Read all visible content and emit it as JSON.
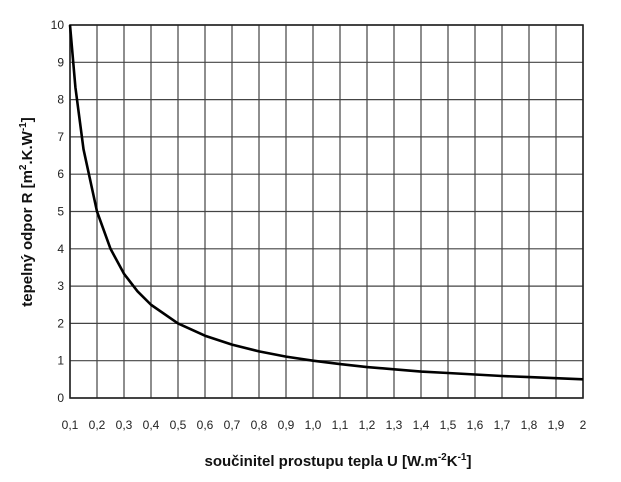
{
  "chart_data": {
    "type": "line",
    "title": "",
    "xlabel": {
      "prefix": "součinitel prostupu tepla U [W.m",
      "sup1": "-2",
      "mid": "K",
      "sup2": "-1",
      "suffix": "]"
    },
    "ylabel": {
      "prefix": "tepelný odpor R [m",
      "sup1": "2",
      "mid": ".K.W",
      "sup2": "-1",
      "suffix": "]"
    },
    "xlim": [
      0.1,
      2.0
    ],
    "ylim": [
      0,
      10
    ],
    "grid": true,
    "x_tick_labels": [
      "0,1",
      "0,2",
      "0,3",
      "0,4",
      "0,5",
      "0,6",
      "0,7",
      "0,8",
      "0,9",
      "1,0",
      "1,1",
      "1,2",
      "1,3",
      "1,4",
      "1,5",
      "1,6",
      "1,7",
      "1,8",
      "1,9",
      "2"
    ],
    "y_tick_labels": [
      "0",
      "1",
      "2",
      "3",
      "4",
      "5",
      "6",
      "7",
      "8",
      "9",
      "10"
    ],
    "series": [
      {
        "x": [
          0.1,
          0.12,
          0.15,
          0.2,
          0.25,
          0.3,
          0.35,
          0.4,
          0.5,
          0.6,
          0.7,
          0.8,
          0.9,
          1.0,
          1.1,
          1.2,
          1.3,
          1.4,
          1.5,
          1.6,
          1.7,
          1.8,
          1.9,
          2.0
        ],
        "y": [
          10,
          8.33,
          6.67,
          5,
          4,
          3.33,
          2.86,
          2.5,
          2,
          1.67,
          1.43,
          1.25,
          1.11,
          1,
          0.91,
          0.83,
          0.77,
          0.71,
          0.67,
          0.63,
          0.59,
          0.56,
          0.53,
          0.5
        ]
      }
    ]
  }
}
